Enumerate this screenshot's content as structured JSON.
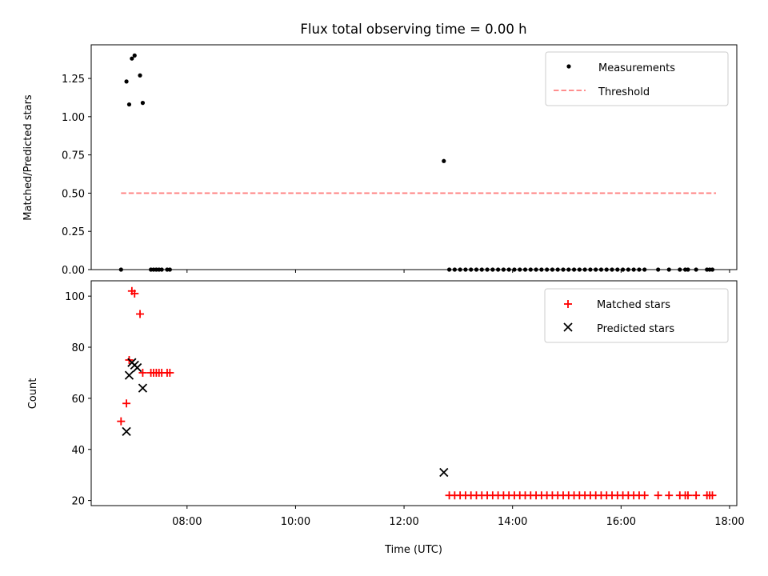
{
  "title": "Flux total observing time = 0.00 h",
  "colors": {
    "matched": "#ff0000",
    "predicted": "#000000",
    "measurement": "#000000",
    "threshold": "#ff7f7f"
  },
  "chart_data": [
    {
      "type": "scatter",
      "ylabel": "Matched/Predicted stars",
      "xlim": [
        "06:14",
        "18:08"
      ],
      "ylim": [
        0,
        1.47
      ],
      "yticks": [
        0.0,
        0.25,
        0.5,
        0.75,
        1.0,
        1.25
      ],
      "ytick_labels": [
        "0.00",
        "0.25",
        "0.50",
        "0.75",
        "1.00",
        "1.25"
      ],
      "legend": {
        "position": "upper right",
        "entries": [
          "Measurements",
          "Threshold"
        ]
      },
      "threshold": {
        "name": "Threshold",
        "value": 0.5,
        "x_range": [
          "06:47",
          "17:45"
        ]
      },
      "series": [
        {
          "name": "Measurements",
          "x": [
            "06:47",
            "06:53",
            "06:56",
            "06:59",
            "07:02",
            "07:08",
            "07:11",
            "07:20",
            "07:23",
            "07:26",
            "07:29",
            "07:32",
            "07:38",
            "07:41",
            "12:44",
            "12:50",
            "12:56",
            "13:02",
            "13:08",
            "13:14",
            "13:20",
            "13:26",
            "13:32",
            "13:38",
            "13:44",
            "13:50",
            "13:56",
            "14:02",
            "14:08",
            "14:14",
            "14:20",
            "14:26",
            "14:32",
            "14:38",
            "14:44",
            "14:50",
            "14:56",
            "15:02",
            "15:08",
            "15:14",
            "15:20",
            "15:26",
            "15:32",
            "15:38",
            "15:44",
            "15:50",
            "15:56",
            "16:02",
            "16:08",
            "16:14",
            "16:20",
            "16:26",
            "16:41",
            "16:53",
            "17:05",
            "17:11",
            "17:14",
            "17:23",
            "17:35",
            "17:38",
            "17:41"
          ],
          "y": [
            0,
            1.23,
            1.08,
            1.38,
            1.4,
            1.27,
            1.09,
            0,
            0,
            0,
            0,
            0,
            0,
            0,
            0.71,
            0,
            0,
            0,
            0,
            0,
            0,
            0,
            0,
            0,
            0,
            0,
            0,
            0,
            0,
            0,
            0,
            0,
            0,
            0,
            0,
            0,
            0,
            0,
            0,
            0,
            0,
            0,
            0,
            0,
            0,
            0,
            0,
            0,
            0,
            0,
            0,
            0,
            0,
            0,
            0,
            0,
            0,
            0,
            0,
            0,
            0
          ]
        }
      ]
    },
    {
      "type": "scatter",
      "xlabel": "Time (UTC)",
      "ylabel": "Count",
      "xlim": [
        "06:14",
        "18:08"
      ],
      "ylim": [
        18,
        106
      ],
      "xticks": [
        "08:00",
        "10:00",
        "12:00",
        "14:00",
        "16:00",
        "18:00"
      ],
      "yticks": [
        20,
        40,
        60,
        80,
        100
      ],
      "legend": {
        "position": "upper right",
        "entries": [
          "Matched stars",
          "Predicted stars"
        ]
      },
      "series": [
        {
          "name": "Matched stars",
          "x": [
            "06:47",
            "06:53",
            "06:56",
            "06:59",
            "07:02",
            "07:08",
            "07:11",
            "07:20",
            "07:23",
            "07:26",
            "07:29",
            "07:32",
            "07:38",
            "07:41",
            "12:50",
            "12:56",
            "13:02",
            "13:08",
            "13:14",
            "13:20",
            "13:26",
            "13:32",
            "13:38",
            "13:44",
            "13:50",
            "13:56",
            "14:02",
            "14:08",
            "14:14",
            "14:20",
            "14:26",
            "14:32",
            "14:38",
            "14:44",
            "14:50",
            "14:56",
            "15:02",
            "15:08",
            "15:14",
            "15:20",
            "15:26",
            "15:32",
            "15:38",
            "15:44",
            "15:50",
            "15:56",
            "16:02",
            "16:08",
            "16:14",
            "16:20",
            "16:26",
            "16:41",
            "16:53",
            "17:05",
            "17:11",
            "17:14",
            "17:23",
            "17:35",
            "17:38",
            "17:41"
          ],
          "y": [
            51,
            58,
            75,
            102,
            101,
            93,
            70,
            70,
            70,
            70,
            70,
            70,
            70,
            70,
            22,
            22,
            22,
            22,
            22,
            22,
            22,
            22,
            22,
            22,
            22,
            22,
            22,
            22,
            22,
            22,
            22,
            22,
            22,
            22,
            22,
            22,
            22,
            22,
            22,
            22,
            22,
            22,
            22,
            22,
            22,
            22,
            22,
            22,
            22,
            22,
            22,
            22,
            22,
            22,
            22,
            22,
            22,
            22,
            22,
            22
          ]
        },
        {
          "name": "Predicted stars",
          "x": [
            "06:53",
            "06:56",
            "06:59",
            "07:02",
            "07:05",
            "07:11",
            "12:44"
          ],
          "y": [
            47,
            69,
            74,
            73,
            72,
            64,
            31
          ]
        }
      ]
    }
  ]
}
